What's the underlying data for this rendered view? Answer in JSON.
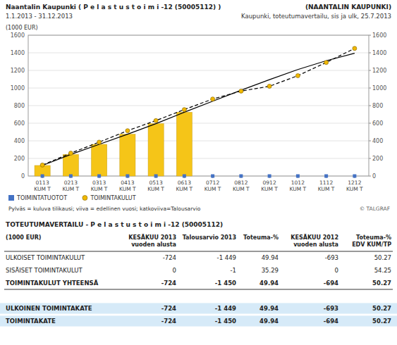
{
  "chart_data": {
    "type": "bar",
    "title": "Naantalin Kaupunki ( P e l a s t u s t o i m i  -12 (50005112) )",
    "subtitle": "1.1.2013 - 31.12.2013",
    "annotations": [
      "(NAANTALIN KAUPUNKI)",
      "Kaupunki, toteutumavertailu, sis ja ulk, 25.7.2013",
      "Pylväs = kuluva tilikausi; viiva = edellinen vuosi; katkoviiva=Talousarvio",
      "© TALGRAF"
    ],
    "y_label": "(1000 EUR)",
    "categories": [
      "0113\nKUM T",
      "0213\nKUM T",
      "0313\nKUM T",
      "0413\nKUM T",
      "0513\nKUM T",
      "0613\nKUM T",
      "0712\nKUM T",
      "0812\nKUM T",
      "0912\nKUM T",
      "1012\nKUM T",
      "1112\nKUM T",
      "1212\nKUM T"
    ],
    "series": [
      {
        "type": "bar",
        "color": "#F5C518",
        "values": [
          120,
          245,
          360,
          475,
          595,
          725,
          0,
          0,
          0,
          0,
          0,
          0
        ]
      },
      {
        "name": "TOIMINTATUOTOT",
        "type": "scatter",
        "marker": "square",
        "color": "#4472C4",
        "values": [
          0,
          0,
          0,
          0,
          0,
          0,
          0,
          0,
          0,
          0,
          0,
          0
        ]
      },
      {
        "type": "line",
        "line_style": "solid",
        "color": "#000000",
        "values": [
          120,
          245,
          360,
          475,
          595,
          725,
          850,
          975,
          1095,
          1210,
          1310,
          1395
        ]
      },
      {
        "name": "TOIMINTAKULUT",
        "type": "line",
        "line_style": "dashed",
        "marker": "circle",
        "color": "#F0B800",
        "values": [
          125,
          260,
          385,
          515,
          630,
          755,
          875,
          965,
          1020,
          1140,
          1290,
          1450
        ]
      }
    ],
    "ylim": [
      0,
      1600
    ],
    "yticks": [
      0,
      200,
      400,
      600,
      800,
      1000,
      1200,
      1400,
      1600
    ],
    "y2lim": [
      0,
      1600
    ],
    "y2ticks": [
      0,
      200,
      400,
      600,
      800,
      1000,
      1200,
      1400,
      1600
    ],
    "grid": true,
    "legend": "bottom"
  },
  "table": {
    "title": "TOTEUTUMAVERTAILU - P e l a s t u s t o i m i  -12 (50005112)",
    "columns": [
      "(1000 EUR)",
      "KESÄKUU 2013\nvuoden alusta",
      "Talousarvio 2013",
      "Toteuma-%",
      "KESÄKUU 2012\nvuoden alusta",
      "Toteuma-%\nEDV KUM/TP"
    ],
    "rows": [
      [
        "ULKOISET TOIMINTAKULUT",
        "-724",
        "-1 449",
        "49.94",
        "-693",
        "50.27"
      ],
      [
        "SISÄISET TOIMINTAKULUT",
        "0",
        "-1",
        "35.29",
        "0",
        "54.25"
      ],
      [
        "TOIMINTAKULUT YHTEENSÄ",
        "-724",
        "-1 450",
        "49.94",
        "-694",
        "50.27"
      ],
      [
        "ULKOINEN TOIMINTAKATE",
        "-724",
        "-1 449",
        "49.94",
        "-693",
        "50.27"
      ],
      [
        "TOIMINTAKATE",
        "-724",
        "-1 450",
        "49.94",
        "-694",
        "50.27"
      ]
    ]
  }
}
